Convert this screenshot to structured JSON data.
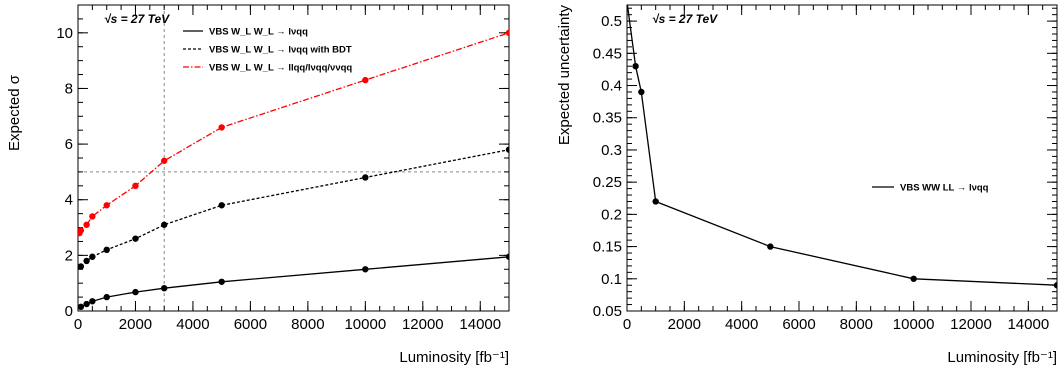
{
  "chart_data": [
    {
      "type": "line",
      "title": "",
      "ylabel": "Expected σ",
      "xlabel": "Luminosity [fb⁻¹]",
      "xlim": [
        0,
        15000
      ],
      "ylim": [
        0,
        11
      ],
      "xticks": [
        0,
        2000,
        4000,
        6000,
        8000,
        10000,
        12000,
        14000
      ],
      "yticks": [
        0,
        2,
        4,
        6,
        8,
        10
      ],
      "annotation": "√s = 27 TeV",
      "legend_position": "top-right",
      "reference_lines": {
        "x": 3000,
        "y": 5
      },
      "series": [
        {
          "name": "VBS W_L W_L → lνqq",
          "color": "#000000",
          "line_style": "solid",
          "x": [
            100,
            300,
            500,
            1000,
            2000,
            3000,
            5000,
            10000,
            15000
          ],
          "y": [
            0.15,
            0.25,
            0.35,
            0.5,
            0.68,
            0.82,
            1.05,
            1.5,
            1.95
          ]
        },
        {
          "name": "VBS W_L W_L → lνqq with BDT",
          "color": "#000000",
          "line_style": "dashed",
          "x": [
            100,
            300,
            500,
            1000,
            2000,
            3000,
            5000,
            10000,
            15000
          ],
          "y": [
            1.6,
            1.8,
            1.95,
            2.2,
            2.6,
            3.1,
            3.8,
            4.8,
            5.8
          ]
        },
        {
          "name": "VBS W_L W_L → llqq/lνqq/ννqq",
          "color": "#ff0000",
          "line_style": "dashdot",
          "x": [
            50,
            100,
            300,
            500,
            1000,
            2000,
            3000,
            5000,
            10000,
            15000
          ],
          "y": [
            2.8,
            2.9,
            3.1,
            3.4,
            3.8,
            4.5,
            5.4,
            6.6,
            8.3,
            10.0
          ]
        }
      ]
    },
    {
      "type": "line",
      "title": "",
      "ylabel": "Expected uncertainty",
      "xlabel": "Luminosity [fb⁻¹]",
      "xlim": [
        0,
        15000
      ],
      "ylim": [
        0.05,
        0.525
      ],
      "xticks": [
        0,
        2000,
        4000,
        6000,
        8000,
        10000,
        12000,
        14000
      ],
      "yticks": [
        0.05,
        0.1,
        0.15,
        0.2,
        0.25,
        0.3,
        0.35,
        0.4,
        0.45,
        0.5
      ],
      "annotation": "√s = 27 TeV",
      "legend_position": "center-right",
      "series": [
        {
          "name": "VBS WW LL → lνqq",
          "color": "#000000",
          "line_style": "solid",
          "x": [
            0,
            300,
            500,
            1000,
            5000,
            10000,
            15000
          ],
          "y": [
            0.53,
            0.43,
            0.39,
            0.22,
            0.15,
            0.1,
            0.09
          ]
        }
      ]
    }
  ]
}
